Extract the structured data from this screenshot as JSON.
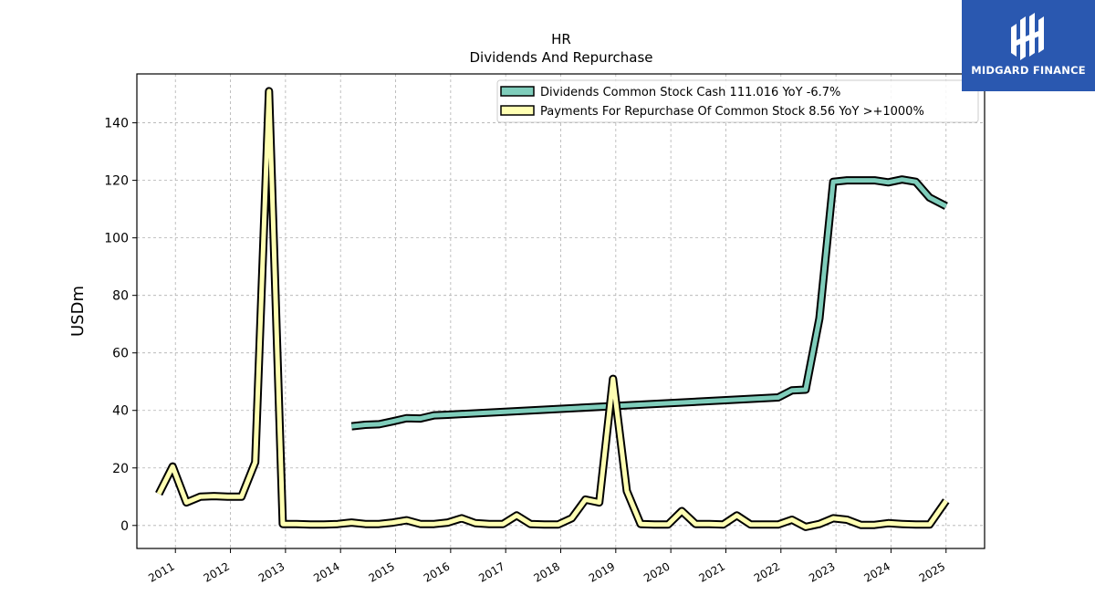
{
  "chart_data": {
    "type": "line",
    "title": "HR",
    "subtitle": "Dividends And Repurchase",
    "ylabel": "USDm",
    "xlabel": "",
    "xlim": [
      2010.3,
      2025.7
    ],
    "ylim": [
      -8,
      157
    ],
    "x_ticks": [
      2011,
      2012,
      2013,
      2014,
      2015,
      2016,
      2017,
      2018,
      2019,
      2020,
      2021,
      2022,
      2023,
      2024,
      2025
    ],
    "y_ticks": [
      0,
      20,
      40,
      60,
      80,
      100,
      120,
      140
    ],
    "grid": true,
    "legend_position": "top-right",
    "series": [
      {
        "name": "Dividends Common Stock Cash  111.016 YoY -6.7%",
        "color": "#7fcdbb",
        "points": [
          [
            2014.2,
            34.5
          ],
          [
            2014.45,
            35
          ],
          [
            2014.7,
            35.2
          ],
          [
            2014.95,
            36.2
          ],
          [
            2015.2,
            37.3
          ],
          [
            2015.45,
            37.2
          ],
          [
            2015.7,
            38.3
          ],
          [
            2015.95,
            38.5
          ],
          [
            2018.95,
            41.5
          ],
          [
            2021.95,
            44.5
          ],
          [
            2022.2,
            47
          ],
          [
            2022.45,
            47.2
          ],
          [
            2022.7,
            72
          ],
          [
            2022.95,
            119.5
          ],
          [
            2023.2,
            120
          ],
          [
            2023.45,
            120
          ],
          [
            2023.7,
            120
          ],
          [
            2023.95,
            119.3
          ],
          [
            2024.2,
            120.3
          ],
          [
            2024.45,
            119.5
          ],
          [
            2024.7,
            114
          ],
          [
            2025.0,
            111.016
          ]
        ]
      },
      {
        "name": "Payments For Repurchase Of Common Stock  8.56 YoY >+1000%",
        "color": "#ffffb3",
        "points": [
          [
            2010.7,
            11
          ],
          [
            2010.95,
            20.5
          ],
          [
            2011.2,
            8
          ],
          [
            2011.45,
            10
          ],
          [
            2011.7,
            10.2
          ],
          [
            2011.95,
            10
          ],
          [
            2012.2,
            10
          ],
          [
            2012.45,
            22
          ],
          [
            2012.7,
            151
          ],
          [
            2012.95,
            0.5
          ],
          [
            2013.2,
            0.5
          ],
          [
            2013.45,
            0.3
          ],
          [
            2013.7,
            0.3
          ],
          [
            2013.95,
            0.5
          ],
          [
            2014.2,
            1
          ],
          [
            2014.45,
            0.5
          ],
          [
            2014.7,
            0.5
          ],
          [
            2014.95,
            1
          ],
          [
            2015.2,
            1.8
          ],
          [
            2015.45,
            0.5
          ],
          [
            2015.7,
            0.5
          ],
          [
            2015.95,
            1
          ],
          [
            2016.2,
            2.5
          ],
          [
            2016.45,
            0.8
          ],
          [
            2016.7,
            0.5
          ],
          [
            2016.95,
            0.5
          ],
          [
            2017.2,
            3.5
          ],
          [
            2017.45,
            0.5
          ],
          [
            2017.7,
            0.3
          ],
          [
            2017.95,
            0.3
          ],
          [
            2018.2,
            2.5
          ],
          [
            2018.45,
            9
          ],
          [
            2018.7,
            8
          ],
          [
            2018.95,
            51
          ],
          [
            2019.2,
            12
          ],
          [
            2019.45,
            0.5
          ],
          [
            2019.7,
            0.3
          ],
          [
            2019.95,
            0.3
          ],
          [
            2020.2,
            5
          ],
          [
            2020.45,
            0.5
          ],
          [
            2020.7,
            0.5
          ],
          [
            2020.95,
            0.3
          ],
          [
            2021.2,
            3.5
          ],
          [
            2021.45,
            0.3
          ],
          [
            2021.7,
            0.3
          ],
          [
            2021.95,
            0.3
          ],
          [
            2022.2,
            2
          ],
          [
            2022.45,
            -0.5
          ],
          [
            2022.7,
            0.5
          ],
          [
            2022.95,
            2.5
          ],
          [
            2023.2,
            2
          ],
          [
            2023.45,
            0.2
          ],
          [
            2023.7,
            0.2
          ],
          [
            2023.95,
            0.8
          ],
          [
            2024.2,
            0.5
          ],
          [
            2024.45,
            0.3
          ],
          [
            2024.7,
            0.3
          ],
          [
            2025.0,
            8.56
          ]
        ]
      }
    ]
  },
  "logo": {
    "text": "MIDGARD FINANCE",
    "background": "#2a58b0"
  }
}
